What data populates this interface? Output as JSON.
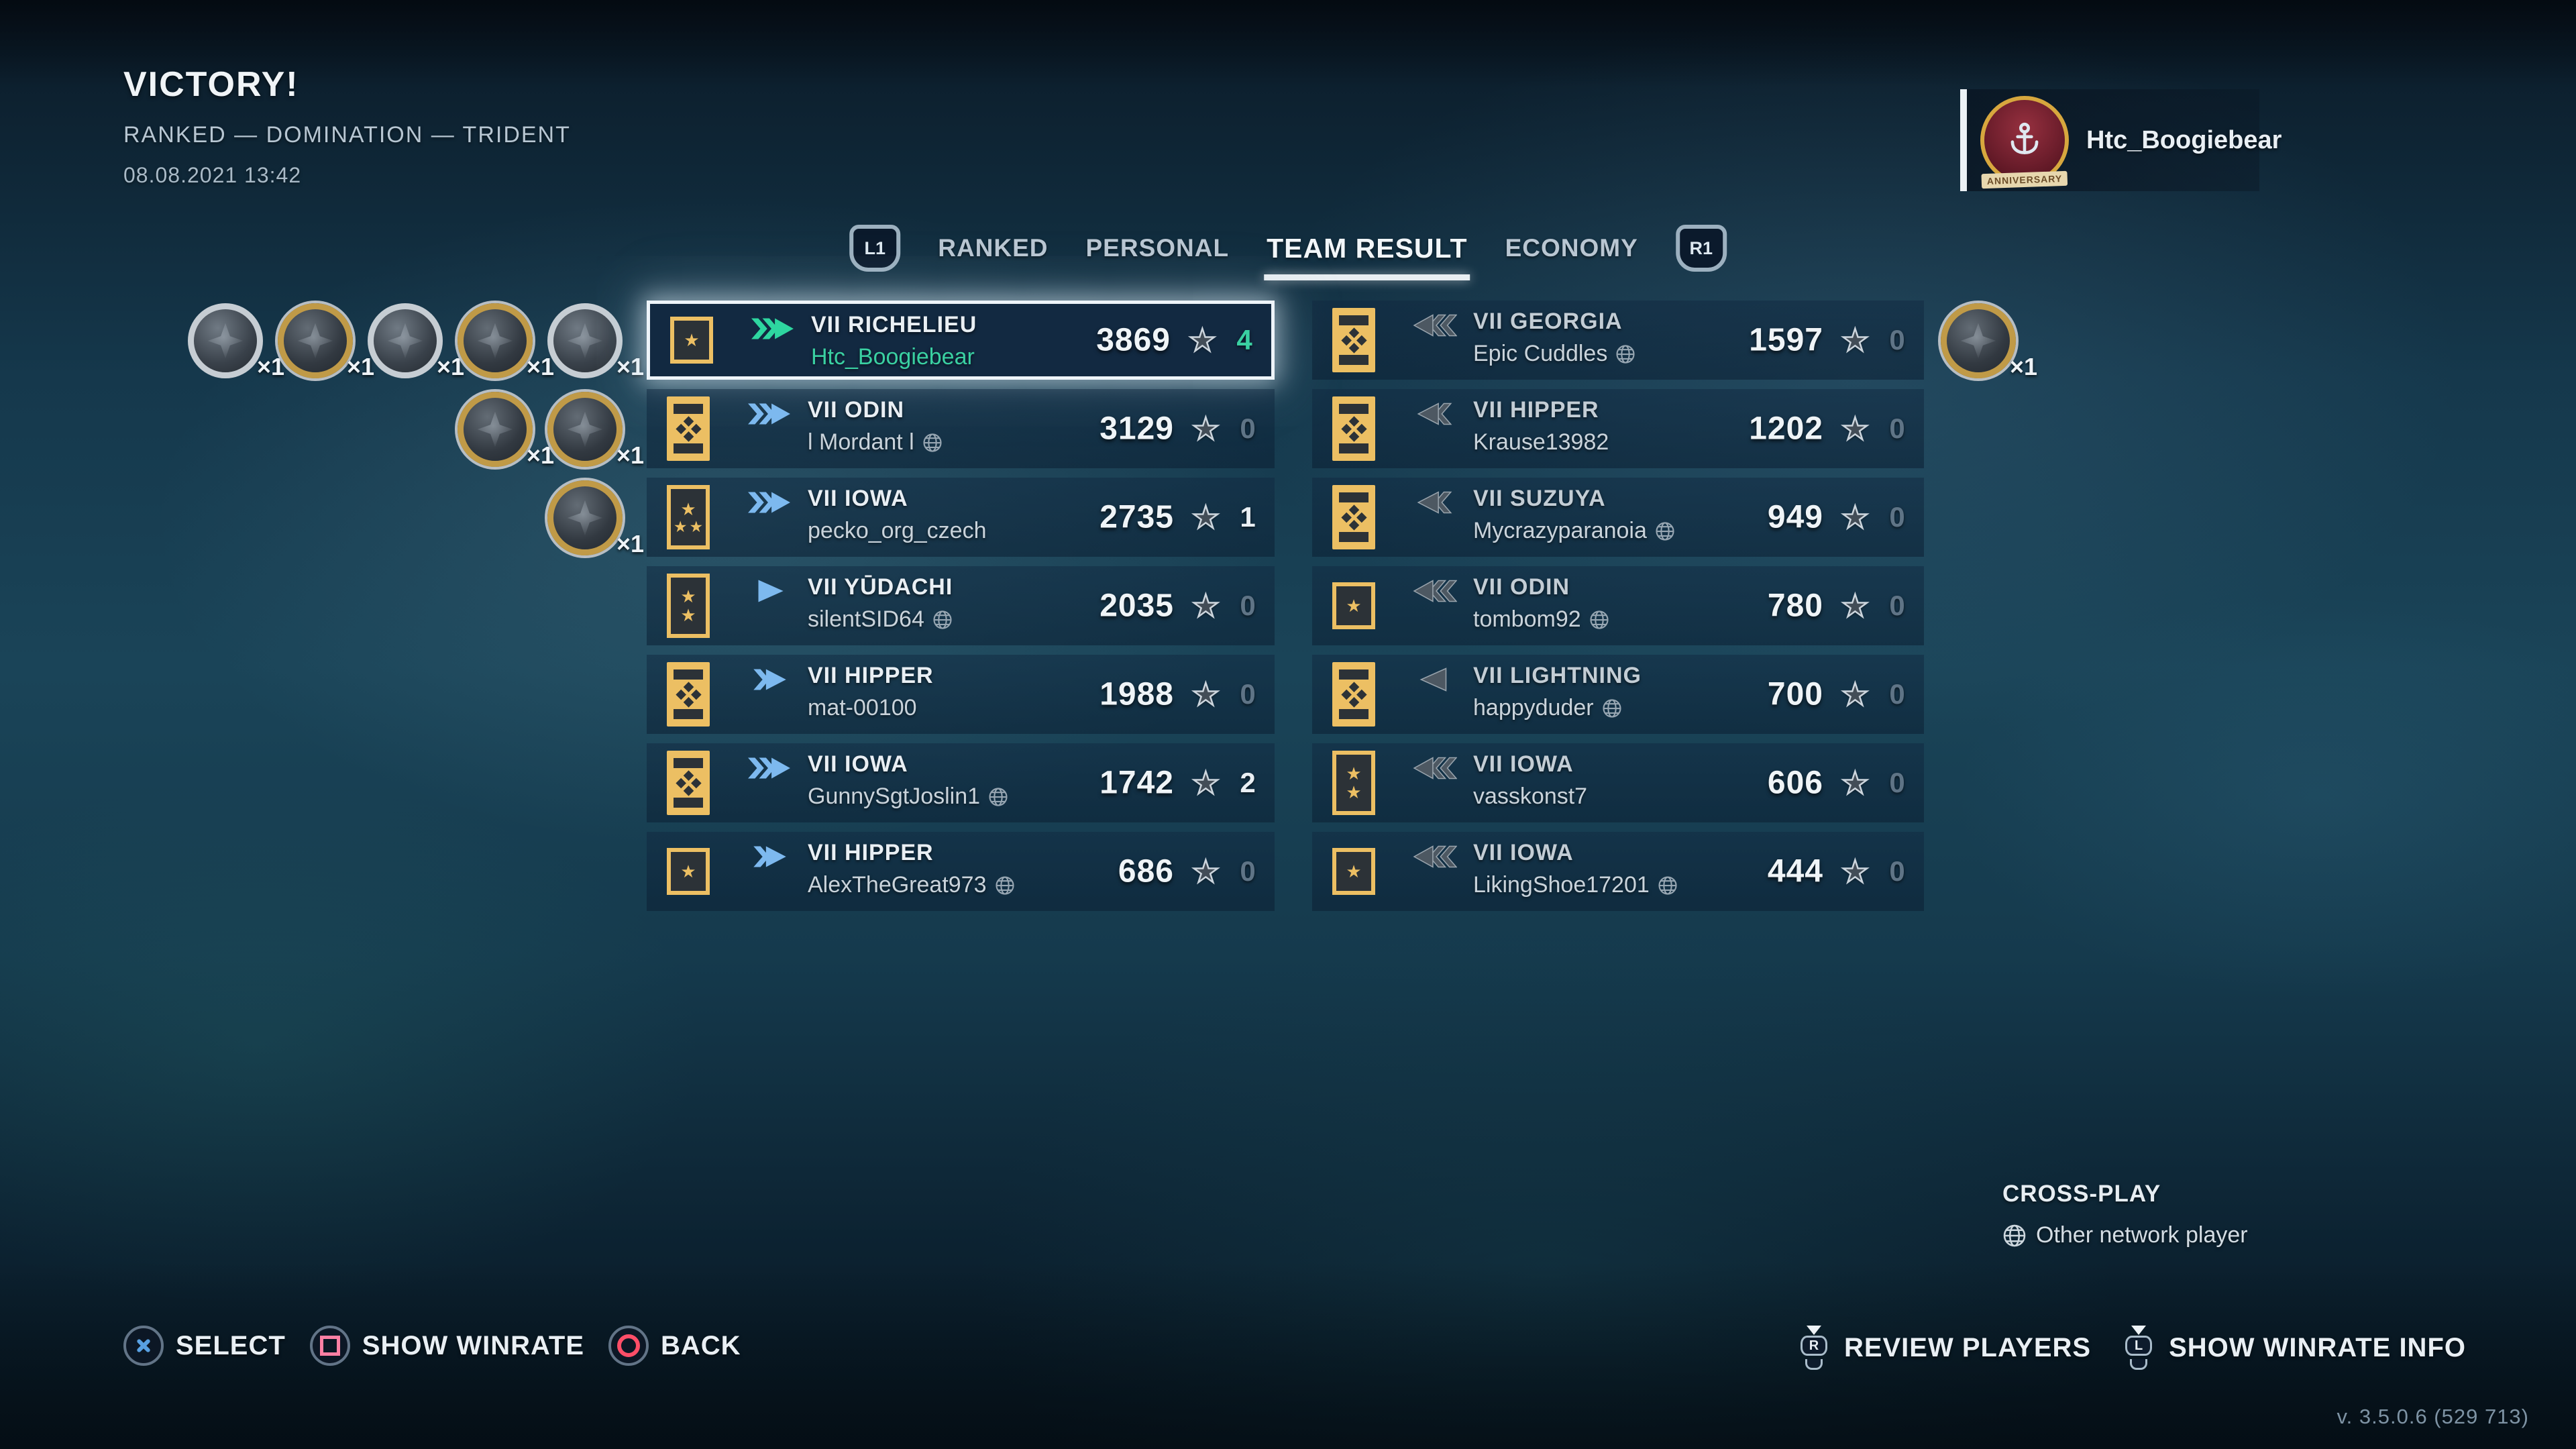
{
  "header": {
    "result": "VICTORY!",
    "mode": "RANKED — DOMINATION — TRIDENT",
    "datetime": "08.08.2021 13:42"
  },
  "player_badge": {
    "name": "Htc_Boogiebear",
    "emblem": "anniversary-medal-emblem",
    "ribbon": "ANNIVERSARY"
  },
  "tabs": {
    "left_bumper": "L1",
    "right_bumper": "R1",
    "items": [
      {
        "label": "RANKED",
        "active": false
      },
      {
        "label": "PERSONAL",
        "active": false
      },
      {
        "label": "TEAM RESULT",
        "active": true
      },
      {
        "label": "ECONOMY",
        "active": false
      }
    ]
  },
  "teams": {
    "allies": [
      {
        "tier": "VII",
        "ship": "RICHELIEU",
        "ship_class": "battleship",
        "player": "Htc_Boogiebear",
        "cross_network": false,
        "xp": "3869",
        "stars": "4",
        "selected": true,
        "self": true,
        "rank_badge": {
          "style": "stars",
          "stars": 1
        }
      },
      {
        "tier": "VII",
        "ship": "ODIN",
        "ship_class": "battleship",
        "player": "l Mordant l",
        "cross_network": true,
        "xp": "3129",
        "stars": "0",
        "selected": false,
        "self": false,
        "rank_badge": {
          "style": "bars"
        }
      },
      {
        "tier": "VII",
        "ship": "IOWA",
        "ship_class": "battleship",
        "player": "pecko_org_czech",
        "cross_network": false,
        "xp": "2735",
        "stars": "1",
        "selected": false,
        "self": false,
        "rank_badge": {
          "style": "stars",
          "stars": 3
        }
      },
      {
        "tier": "VII",
        "ship": "YŪDACHI",
        "ship_class": "destroyer",
        "player": "silentSID64",
        "cross_network": true,
        "xp": "2035",
        "stars": "0",
        "selected": false,
        "self": false,
        "rank_badge": {
          "style": "stars",
          "stars": 2
        }
      },
      {
        "tier": "VII",
        "ship": "HIPPER",
        "ship_class": "cruiser",
        "player": "mat-00100",
        "cross_network": false,
        "xp": "1988",
        "stars": "0",
        "selected": false,
        "self": false,
        "rank_badge": {
          "style": "bars"
        }
      },
      {
        "tier": "VII",
        "ship": "IOWA",
        "ship_class": "battleship",
        "player": "GunnySgtJoslin1",
        "cross_network": true,
        "xp": "1742",
        "stars": "2",
        "selected": false,
        "self": false,
        "rank_badge": {
          "style": "bars"
        }
      },
      {
        "tier": "VII",
        "ship": "HIPPER",
        "ship_class": "cruiser",
        "player": "AlexTheGreat973",
        "cross_network": true,
        "xp": "686",
        "stars": "0",
        "selected": false,
        "self": false,
        "rank_badge": {
          "style": "stars",
          "stars": 1
        }
      }
    ],
    "enemies": [
      {
        "tier": "VII",
        "ship": "GEORGIA",
        "ship_class": "battleship",
        "player": "Epic Cuddles",
        "cross_network": true,
        "xp": "1597",
        "stars": "0",
        "selected": false,
        "self": false,
        "rank_badge": {
          "style": "bars"
        }
      },
      {
        "tier": "VII",
        "ship": "HIPPER",
        "ship_class": "cruiser",
        "player": "Krause13982",
        "cross_network": false,
        "xp": "1202",
        "stars": "0",
        "selected": false,
        "self": false,
        "rank_badge": {
          "style": "bars"
        }
      },
      {
        "tier": "VII",
        "ship": "SUZUYA",
        "ship_class": "cruiser",
        "player": "Mycrazyparanoia",
        "cross_network": true,
        "xp": "949",
        "stars": "0",
        "selected": false,
        "self": false,
        "rank_badge": {
          "style": "bars"
        }
      },
      {
        "tier": "VII",
        "ship": "ODIN",
        "ship_class": "battleship",
        "player": "tombom92",
        "cross_network": true,
        "xp": "780",
        "stars": "0",
        "selected": false,
        "self": false,
        "rank_badge": {
          "style": "stars",
          "stars": 1
        }
      },
      {
        "tier": "VII",
        "ship": "LIGHTNING",
        "ship_class": "destroyer",
        "player": "happyduder",
        "cross_network": true,
        "xp": "700",
        "stars": "0",
        "selected": false,
        "self": false,
        "rank_badge": {
          "style": "bars"
        }
      },
      {
        "tier": "VII",
        "ship": "IOWA",
        "ship_class": "battleship",
        "player": "vasskonst7",
        "cross_network": false,
        "xp": "606",
        "stars": "0",
        "selected": false,
        "self": false,
        "rank_badge": {
          "style": "stars",
          "stars": 2
        }
      },
      {
        "tier": "VII",
        "ship": "IOWA",
        "ship_class": "battleship",
        "player": "LikingShoe17201",
        "cross_network": true,
        "xp": "444",
        "stars": "0",
        "selected": false,
        "self": false,
        "rank_badge": {
          "style": "stars",
          "stars": 1
        }
      }
    ]
  },
  "medals": {
    "left_rows": [
      [
        {
          "ring": "silver",
          "art": "ship-hourglass",
          "count": "×1"
        },
        {
          "ring": "gold",
          "art": "battleship",
          "count": "×1"
        },
        {
          "ring": "silver",
          "art": "explosion",
          "count": "×1"
        },
        {
          "ring": "gold",
          "art": "shell",
          "count": "×1"
        },
        {
          "ring": "silver",
          "art": "sinking-ship",
          "count": "×1"
        }
      ],
      [
        {
          "ring": "gold",
          "art": "battleship",
          "count": "×1"
        },
        {
          "ring": "gold",
          "art": "shell",
          "count": "×1"
        }
      ],
      [
        {
          "ring": "gold",
          "art": "battleship",
          "count": "×1"
        }
      ]
    ],
    "right": [
      {
        "ring": "gold",
        "art": "shell",
        "count": "×1"
      }
    ]
  },
  "legend": {
    "title": "CROSS-PLAY",
    "globe_label": "Other network player"
  },
  "footer": {
    "actions_left": [
      {
        "button": "cross",
        "label": "SELECT"
      },
      {
        "button": "square",
        "label": "SHOW WINRATE"
      },
      {
        "button": "circle",
        "label": "BACK"
      }
    ],
    "actions_right": [
      {
        "button": "stick-r",
        "label": "REVIEW PLAYERS"
      },
      {
        "button": "stick-l",
        "label": "SHOW WINRATE INFO"
      }
    ],
    "version": "v. 3.5.0.6 (529 713)"
  },
  "colors": {
    "accent_teal": "#35d0a0",
    "ally_blue": "#7db9ef",
    "enemy_gray": "#4d5862",
    "gold": "#ecbf63",
    "selection_white": "#eef4f9"
  }
}
